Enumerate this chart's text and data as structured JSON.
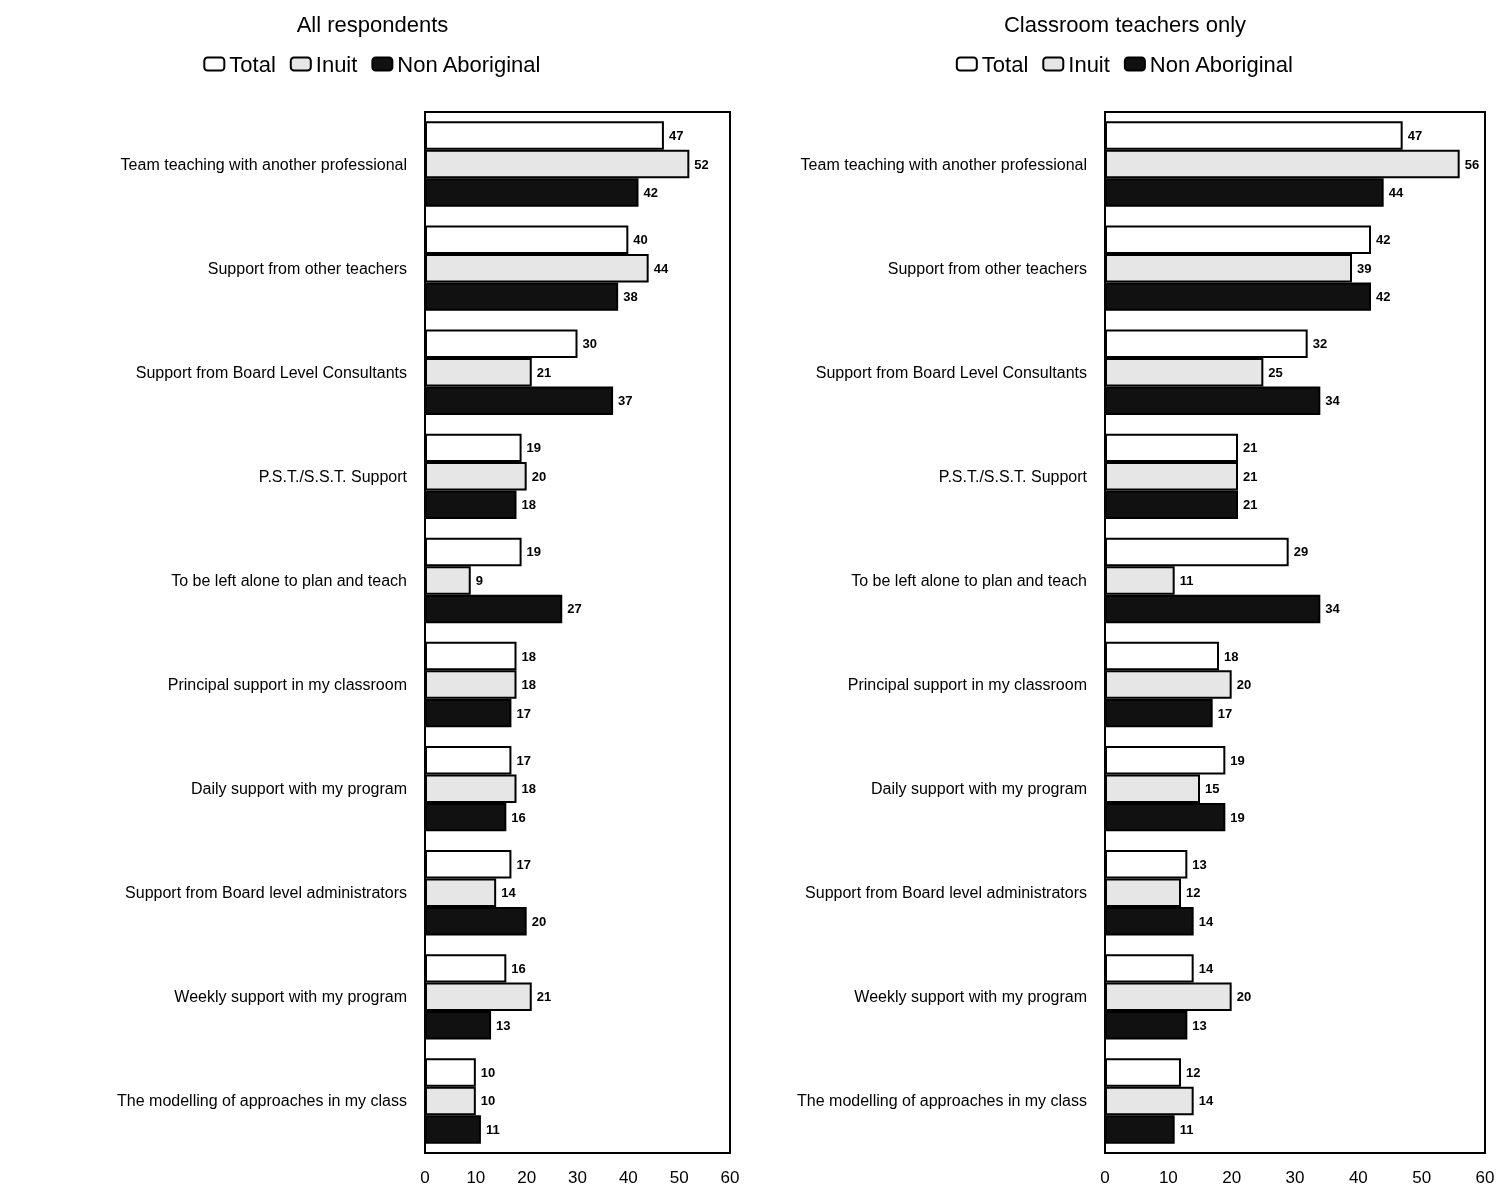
{
  "chart_data": [
    {
      "type": "bar",
      "orientation": "horizontal",
      "title": "All respondents",
      "categories": [
        "Team teaching with another professional",
        "Support from other teachers",
        "Support from Board Level Consultants",
        "P.S.T./S.S.T. Support",
        "To be left alone to plan and teach",
        "Principal support in my classroom",
        "Daily support with my program",
        "Support from Board level administrators",
        "Weekly support with my program",
        "The modelling of approaches in my class"
      ],
      "series": [
        {
          "name": "Total",
          "color": "#ffffff",
          "values": [
            47,
            40,
            30,
            19,
            19,
            18,
            17,
            17,
            16,
            10
          ]
        },
        {
          "name": "Inuit",
          "color": "#e6e6e6",
          "values": [
            52,
            44,
            21,
            20,
            9,
            18,
            18,
            14,
            21,
            10
          ]
        },
        {
          "name": "Non Aboriginal",
          "color": "#111111",
          "values": [
            42,
            38,
            37,
            18,
            27,
            17,
            16,
            20,
            13,
            11
          ]
        }
      ],
      "xlim": [
        0,
        60
      ],
      "xticks": [
        0,
        10,
        20,
        30,
        40,
        50,
        60
      ],
      "data_labels": true,
      "legend": "top",
      "grid": false
    },
    {
      "type": "bar",
      "orientation": "horizontal",
      "title": "Classroom teachers only",
      "categories": [
        "Team teaching with another professional",
        "Support from other teachers",
        "Support from Board Level Consultants",
        "P.S.T./S.S.T. Support",
        "To be left alone to plan and teach",
        "Principal support in my classroom",
        "Daily support with my program",
        "Support from Board level administrators",
        "Weekly support with my program",
        "The modelling of approaches in my class"
      ],
      "series": [
        {
          "name": "Total",
          "color": "#ffffff",
          "values": [
            47,
            42,
            32,
            21,
            29,
            18,
            19,
            13,
            14,
            12
          ]
        },
        {
          "name": "Inuit",
          "color": "#e6e6e6",
          "values": [
            56,
            39,
            25,
            21,
            11,
            20,
            15,
            12,
            20,
            14
          ]
        },
        {
          "name": "Non Aboriginal",
          "color": "#111111",
          "values": [
            44,
            42,
            34,
            21,
            34,
            17,
            19,
            14,
            13,
            11
          ]
        }
      ],
      "xlim": [
        0,
        60
      ],
      "xticks": [
        0,
        10,
        20,
        30,
        40,
        50,
        60
      ],
      "data_labels": true,
      "legend": "top",
      "grid": false
    }
  ]
}
